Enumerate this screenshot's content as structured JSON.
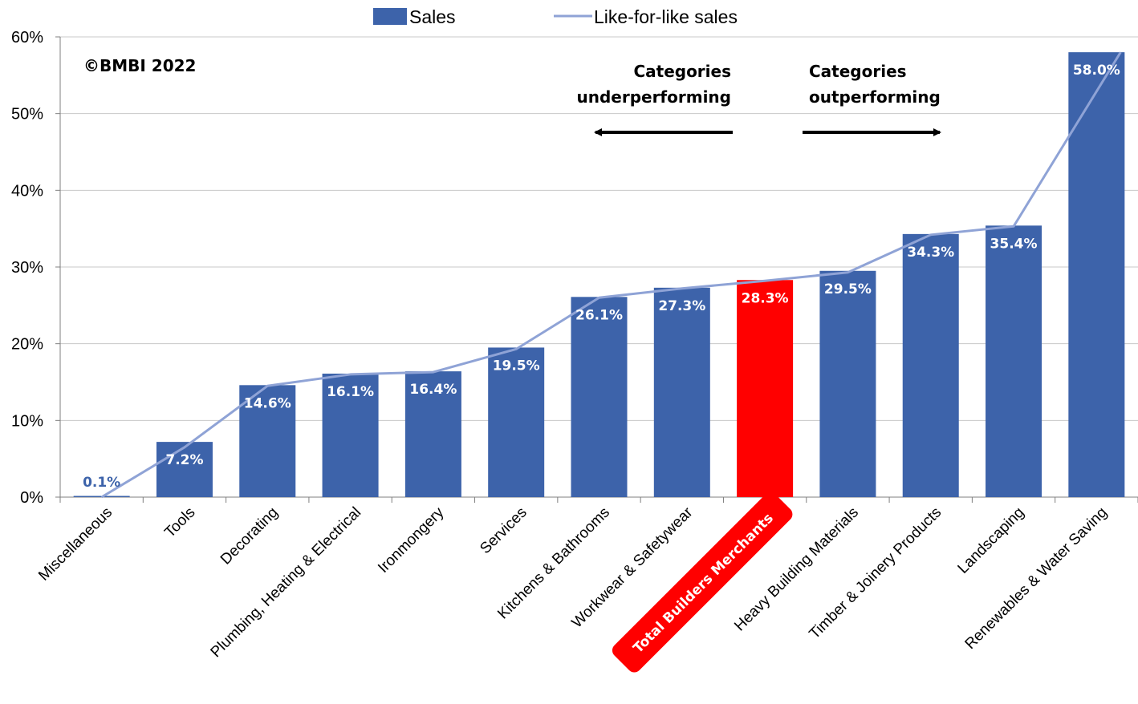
{
  "copyright": "©BMBI 2022",
  "annotations": {
    "under_line1": "Categories",
    "under_line2": "underperforming",
    "over_line1": "Categories",
    "over_line2": "outperforming"
  },
  "legend": {
    "bar_label": "Sales",
    "line_label": "Like-for-like sales"
  },
  "colors": {
    "bar": "#3d63aa",
    "highlight": "#ff0000",
    "line": "#8fa3d6",
    "grid": "#c8c8c8",
    "axis": "#7f7f7f"
  },
  "chart_data": {
    "type": "bar",
    "title": "",
    "xlabel": "",
    "ylabel": "",
    "ylim": [
      0,
      60
    ],
    "yticks": [
      "0%",
      "10%",
      "20%",
      "30%",
      "40%",
      "50%",
      "60%"
    ],
    "categories": [
      "Miscellaneous",
      "Tools",
      "Decorating",
      "Plumbing, Heating & Electrical",
      "Ironmongery",
      "Services",
      "Kitchens & Bathrooms",
      "Workwear & Safetywear",
      "Total Builders Merchants",
      "Heavy Building Materials",
      "Timber & Joinery Products",
      "Landscaping",
      "Renewables & Water Saving"
    ],
    "highlight_category": "Total Builders Merchants",
    "series": [
      {
        "name": "Sales",
        "type": "bar",
        "values": [
          0.1,
          7.2,
          14.6,
          16.1,
          16.4,
          19.5,
          26.1,
          27.3,
          28.3,
          29.5,
          34.3,
          35.4,
          58.0
        ],
        "labels": [
          "0.1%",
          "7.2%",
          "14.6%",
          "16.1%",
          "16.4%",
          "19.5%",
          "26.1%",
          "27.3%",
          "28.3%",
          "29.5%",
          "34.3%",
          "35.4%",
          "58.0%"
        ]
      },
      {
        "name": "Like-for-like sales",
        "type": "line",
        "values": [
          0.0,
          6.5,
          14.5,
          16.0,
          16.3,
          19.3,
          26.0,
          27.2,
          28.2,
          29.3,
          34.2,
          35.3,
          58.0
        ]
      }
    ],
    "grid": true,
    "legend_position": "top-center"
  }
}
